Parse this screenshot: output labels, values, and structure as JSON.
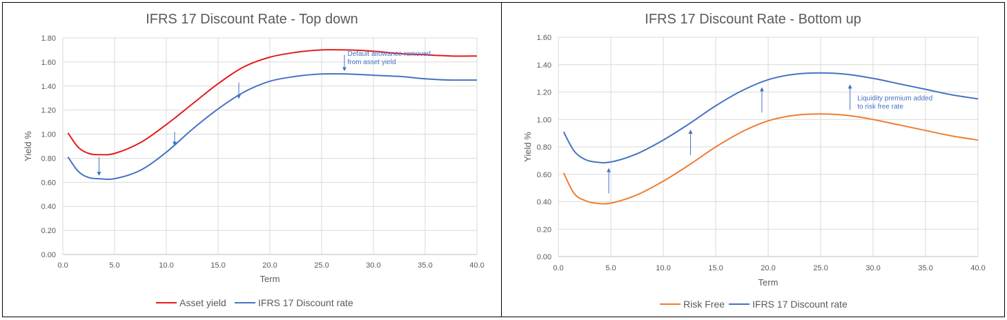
{
  "chart_data": [
    {
      "type": "line",
      "title": "IFRS 17 Discount Rate - Top down",
      "xlabel": "Term",
      "ylabel": "Yield %",
      "xlim": [
        0,
        40
      ],
      "ylim": [
        0,
        1.8
      ],
      "x_ticks": [
        "0.0",
        "5.0",
        "10.0",
        "15.0",
        "20.0",
        "25.0",
        "30.0",
        "35.0",
        "40.0"
      ],
      "y_ticks": [
        "0.00",
        "0.20",
        "0.40",
        "0.60",
        "0.80",
        "1.00",
        "1.20",
        "1.40",
        "1.60",
        "1.80"
      ],
      "grid": true,
      "legend_position": "bottom",
      "x": [
        0.5,
        1.5,
        2.5,
        3.5,
        5,
        7.5,
        10,
        12.5,
        15,
        17.5,
        20,
        22.5,
        25,
        27.5,
        30,
        32.5,
        35,
        37.5,
        40
      ],
      "series": [
        {
          "name": "Asset yield",
          "color": "#E41A1C",
          "values": [
            1.01,
            0.89,
            0.84,
            0.83,
            0.84,
            0.93,
            1.08,
            1.25,
            1.42,
            1.56,
            1.64,
            1.68,
            1.7,
            1.7,
            1.69,
            1.67,
            1.66,
            1.65,
            1.65
          ]
        },
        {
          "name": "IFRS 17 Discount rate",
          "color": "#4472C4",
          "values": [
            0.81,
            0.69,
            0.64,
            0.63,
            0.63,
            0.7,
            0.85,
            1.04,
            1.21,
            1.35,
            1.44,
            1.48,
            1.5,
            1.5,
            1.49,
            1.48,
            1.46,
            1.45,
            1.45
          ]
        }
      ],
      "annotations": [
        {
          "text_lines": [
            "Default allowance removed",
            "from asset yield"
          ],
          "x": 27.5,
          "y": 1.65
        }
      ],
      "arrows": {
        "direction": "down",
        "color": "#4472C4",
        "points": [
          {
            "x": 3.5,
            "y_from": 0.81,
            "y_to": 0.66
          },
          {
            "x": 10.8,
            "y_from": 1.02,
            "y_to": 0.91
          },
          {
            "x": 17.0,
            "y_from": 1.43,
            "y_to": 1.3
          },
          {
            "x": 27.2,
            "y_from": 1.66,
            "y_to": 1.53
          }
        ]
      }
    },
    {
      "type": "line",
      "title": "IFRS 17 Discount Rate - Bottom up",
      "xlabel": "Term",
      "ylabel": "Yield %",
      "xlim": [
        0,
        40
      ],
      "ylim": [
        0,
        1.6
      ],
      "x_ticks": [
        "0.0",
        "5.0",
        "10.0",
        "15.0",
        "20.0",
        "25.0",
        "30.0",
        "35.0",
        "40.0"
      ],
      "y_ticks": [
        "0.00",
        "0.20",
        "0.40",
        "0.60",
        "0.80",
        "1.00",
        "1.20",
        "1.40",
        "1.60"
      ],
      "grid": true,
      "legend_position": "bottom",
      "x": [
        0.5,
        1.5,
        2.5,
        3.5,
        5,
        7.5,
        10,
        12.5,
        15,
        17.5,
        20,
        22.5,
        25,
        27.5,
        30,
        32.5,
        35,
        37.5,
        40
      ],
      "series": [
        {
          "name": "Risk Free",
          "color": "#ED7D31",
          "values": [
            0.61,
            0.46,
            0.41,
            0.39,
            0.39,
            0.45,
            0.55,
            0.67,
            0.8,
            0.91,
            0.99,
            1.03,
            1.04,
            1.03,
            1.0,
            0.96,
            0.92,
            0.88,
            0.85
          ]
        },
        {
          "name": "IFRS 17 Discount rate",
          "color": "#4472C4",
          "values": [
            0.91,
            0.77,
            0.71,
            0.69,
            0.69,
            0.75,
            0.85,
            0.97,
            1.1,
            1.21,
            1.29,
            1.33,
            1.34,
            1.33,
            1.3,
            1.26,
            1.22,
            1.18,
            1.15
          ]
        }
      ],
      "annotations": [
        {
          "text_lines": [
            "Liquidity premium added",
            "to risk free rate"
          ],
          "x": 28.5,
          "y": 1.14
        }
      ],
      "arrows": {
        "direction": "up",
        "color": "#4472C4",
        "points": [
          {
            "x": 4.8,
            "y_from": 0.46,
            "y_to": 0.64
          },
          {
            "x": 12.6,
            "y_from": 0.74,
            "y_to": 0.92
          },
          {
            "x": 19.4,
            "y_from": 1.05,
            "y_to": 1.23
          },
          {
            "x": 27.8,
            "y_from": 1.07,
            "y_to": 1.25
          }
        ]
      }
    }
  ]
}
